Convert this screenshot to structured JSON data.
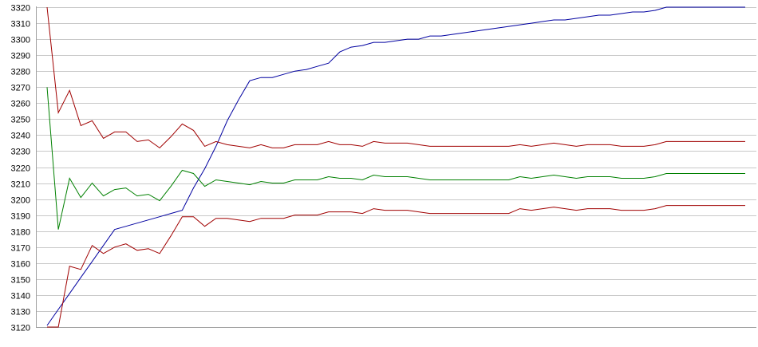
{
  "chart_data": {
    "type": "line",
    "title": "",
    "xlabel": "",
    "ylabel": "",
    "ylim": [
      3120,
      3320
    ],
    "yticks": [
      3120,
      3130,
      3140,
      3150,
      3160,
      3170,
      3180,
      3190,
      3200,
      3210,
      3220,
      3230,
      3240,
      3250,
      3260,
      3270,
      3280,
      3290,
      3300,
      3310,
      3320
    ],
    "grid": true,
    "legend": "none",
    "x": [
      0,
      1,
      2,
      3,
      4,
      5,
      6,
      7,
      8,
      9,
      10,
      11,
      12,
      13,
      14,
      15,
      16,
      17,
      18,
      19,
      20,
      21,
      22,
      23,
      24,
      25,
      26,
      27,
      28,
      29,
      30,
      31,
      32,
      33,
      34,
      35,
      36,
      37,
      38,
      39,
      40,
      41,
      42,
      43,
      44,
      45,
      46,
      47,
      48,
      49,
      50,
      51,
      52,
      53,
      54,
      55,
      56,
      57,
      58,
      59,
      60,
      61,
      62
    ],
    "series": [
      {
        "color": "#0000a0",
        "values": [
          3121,
          3131,
          3141,
          3151,
          3161,
          3171,
          3181,
          3183,
          3185,
          3187,
          3189,
          3191,
          3193,
          3207,
          3219,
          3233,
          3249,
          3262,
          3274,
          3276,
          3276,
          3278,
          3280,
          3281,
          3283,
          3285,
          3292,
          3295,
          3296,
          3298,
          3298,
          3299,
          3300,
          3300,
          3302,
          3302,
          3303,
          3304,
          3305,
          3306,
          3307,
          3308,
          3309,
          3310,
          3311,
          3312,
          3312,
          3313,
          3314,
          3315,
          3315,
          3316,
          3317,
          3317,
          3318,
          3320,
          3320,
          3320,
          3320,
          3320,
          3320,
          3320,
          3320
        ]
      },
      {
        "color": "#a00000",
        "values": [
          3320,
          3254,
          3268,
          3246,
          3249,
          3238,
          3242,
          3242,
          3236,
          3237,
          3232,
          3239,
          3247,
          3243,
          3233,
          3236,
          3234,
          3233,
          3232,
          3234,
          3232,
          3232,
          3234,
          3234,
          3234,
          3236,
          3234,
          3234,
          3233,
          3236,
          3235,
          3235,
          3235,
          3234,
          3233,
          3233,
          3233,
          3233,
          3233,
          3233,
          3233,
          3233,
          3234,
          3233,
          3234,
          3235,
          3234,
          3233,
          3234,
          3234,
          3234,
          3233,
          3233,
          3233,
          3234,
          3236,
          3236,
          3236,
          3236,
          3236,
          3236,
          3236,
          3236
        ]
      },
      {
        "color": "#008000",
        "values": [
          3270,
          3181,
          3213,
          3201,
          3210,
          3202,
          3206,
          3207,
          3202,
          3203,
          3199,
          3208,
          3218,
          3216,
          3208,
          3212,
          3211,
          3210,
          3209,
          3211,
          3210,
          3210,
          3212,
          3212,
          3212,
          3214,
          3213,
          3213,
          3212,
          3215,
          3214,
          3214,
          3214,
          3213,
          3212,
          3212,
          3212,
          3212,
          3212,
          3212,
          3212,
          3212,
          3214,
          3213,
          3214,
          3215,
          3214,
          3213,
          3214,
          3214,
          3214,
          3213,
          3213,
          3213,
          3214,
          3216,
          3216,
          3216,
          3216,
          3216,
          3216,
          3216,
          3216
        ]
      },
      {
        "color": "#a00000",
        "values": [
          3120,
          3120,
          3158,
          3156,
          3171,
          3166,
          3170,
          3172,
          3168,
          3169,
          3166,
          3177,
          3189,
          3189,
          3183,
          3188,
          3188,
          3187,
          3186,
          3188,
          3188,
          3188,
          3190,
          3190,
          3190,
          3192,
          3192,
          3192,
          3191,
          3194,
          3193,
          3193,
          3193,
          3192,
          3191,
          3191,
          3191,
          3191,
          3191,
          3191,
          3191,
          3191,
          3194,
          3193,
          3194,
          3195,
          3194,
          3193,
          3194,
          3194,
          3194,
          3193,
          3193,
          3193,
          3194,
          3196,
          3196,
          3196,
          3196,
          3196,
          3196,
          3196,
          3196
        ]
      }
    ]
  }
}
